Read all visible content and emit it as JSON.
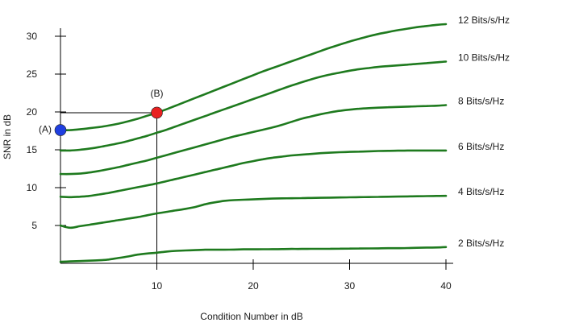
{
  "chart_data": {
    "type": "line",
    "title": "",
    "xlabel": "Condition Number in dB",
    "ylabel": "SNR in dB",
    "xlim": [
      0,
      40
    ],
    "ylim": [
      0,
      33
    ],
    "grid": false,
    "legend": "none",
    "x_ticks": [
      10,
      20,
      30,
      40
    ],
    "x_tick_labels": [
      "10",
      "20",
      "30",
      "40"
    ],
    "y_ticks": [
      5,
      10,
      15,
      20,
      25,
      30
    ],
    "y_tick_labels": [
      "5",
      "10",
      "15",
      "20",
      "25",
      "30"
    ],
    "line_color": "#1e7a1e",
    "x": [
      0,
      1,
      2,
      3,
      4,
      5,
      6,
      7,
      8,
      9,
      10,
      11,
      12,
      13,
      14,
      15,
      16,
      17,
      18,
      19,
      20,
      21,
      22,
      23,
      24,
      25,
      26,
      27,
      28,
      29,
      30,
      31,
      32,
      33,
      34,
      35,
      36,
      37,
      38,
      39,
      40
    ],
    "series": [
      {
        "name": "2 Bits/s/Hz",
        "values": [
          0.2,
          0.25,
          0.3,
          0.35,
          0.4,
          0.5,
          0.7,
          0.9,
          1.15,
          1.3,
          1.4,
          1.55,
          1.65,
          1.7,
          1.75,
          1.8,
          1.8,
          1.8,
          1.82,
          1.85,
          1.85,
          1.86,
          1.87,
          1.88,
          1.9,
          1.9,
          1.91,
          1.92,
          1.93,
          1.94,
          1.95,
          1.96,
          1.97,
          1.98,
          2.0,
          2.0,
          2.02,
          2.05,
          2.08,
          2.1,
          2.15
        ]
      },
      {
        "name": "4 Bits/s/Hz",
        "values": [
          5.0,
          4.7,
          4.9,
          5.1,
          5.3,
          5.5,
          5.7,
          5.9,
          6.1,
          6.35,
          6.6,
          6.8,
          7.0,
          7.2,
          7.45,
          7.8,
          8.05,
          8.25,
          8.35,
          8.4,
          8.45,
          8.5,
          8.55,
          8.58,
          8.6,
          8.62,
          8.64,
          8.66,
          8.68,
          8.7,
          8.72,
          8.74,
          8.76,
          8.78,
          8.8,
          8.82,
          8.84,
          8.86,
          8.88,
          8.9,
          8.92
        ]
      },
      {
        "name": "6 Bits/s/Hz",
        "values": [
          8.8,
          8.75,
          8.8,
          8.9,
          9.1,
          9.3,
          9.55,
          9.8,
          10.05,
          10.3,
          10.55,
          10.85,
          11.15,
          11.45,
          11.75,
          12.05,
          12.35,
          12.65,
          12.95,
          13.25,
          13.5,
          13.75,
          13.95,
          14.1,
          14.25,
          14.35,
          14.45,
          14.55,
          14.62,
          14.68,
          14.72,
          14.76,
          14.8,
          14.84,
          14.86,
          14.88,
          14.9,
          14.9,
          14.9,
          14.9,
          14.9
        ]
      },
      {
        "name": "8 Bits/s/Hz",
        "values": [
          11.8,
          11.8,
          11.85,
          12.0,
          12.2,
          12.45,
          12.7,
          13.0,
          13.3,
          13.6,
          13.95,
          14.3,
          14.65,
          15.0,
          15.35,
          15.7,
          16.05,
          16.4,
          16.75,
          17.05,
          17.35,
          17.65,
          17.95,
          18.3,
          18.7,
          19.1,
          19.4,
          19.7,
          19.95,
          20.15,
          20.3,
          20.42,
          20.5,
          20.56,
          20.62,
          20.66,
          20.7,
          20.74,
          20.78,
          20.82,
          20.9
        ]
      },
      {
        "name": "10 Bits/s/Hz",
        "values": [
          14.9,
          14.9,
          15.0,
          15.15,
          15.35,
          15.6,
          15.85,
          16.15,
          16.5,
          16.85,
          17.25,
          17.65,
          18.1,
          18.55,
          19.0,
          19.45,
          19.9,
          20.35,
          20.8,
          21.25,
          21.7,
          22.15,
          22.6,
          23.05,
          23.5,
          23.9,
          24.3,
          24.65,
          24.95,
          25.2,
          25.45,
          25.65,
          25.8,
          25.95,
          26.05,
          26.15,
          26.25,
          26.35,
          26.45,
          26.55,
          26.65
        ]
      },
      {
        "name": "12 Bits/s/Hz",
        "values": [
          17.6,
          17.6,
          17.7,
          17.85,
          18.0,
          18.2,
          18.45,
          18.75,
          19.1,
          19.5,
          19.9,
          20.35,
          20.85,
          21.35,
          21.85,
          22.35,
          22.85,
          23.35,
          23.85,
          24.35,
          24.85,
          25.35,
          25.8,
          26.25,
          26.7,
          27.15,
          27.6,
          28.05,
          28.5,
          28.9,
          29.3,
          29.65,
          30.0,
          30.3,
          30.55,
          30.8,
          31.0,
          31.2,
          31.35,
          31.5,
          31.6
        ]
      }
    ],
    "points": [
      {
        "label": "(A)",
        "x": 0,
        "y": 17.6,
        "color": "#1f3fe0"
      },
      {
        "label": "(B)",
        "x": 10,
        "y": 19.9,
        "color": "#e82020"
      }
    ]
  }
}
